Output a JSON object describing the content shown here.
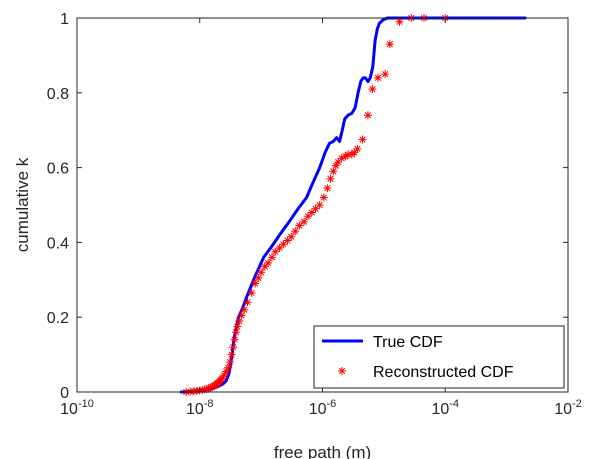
{
  "chart_data": {
    "type": "line",
    "xscale": "log",
    "xlabel": "free path (m)",
    "ylabel": "cumulative k",
    "xlim": [
      1e-10,
      0.01
    ],
    "ylim": [
      0,
      1
    ],
    "x_ticks": [
      {
        "value": 1e-10,
        "base": "10",
        "exp": "-10"
      },
      {
        "value": 1e-08,
        "base": "10",
        "exp": "-8"
      },
      {
        "value": 1e-06,
        "base": "10",
        "exp": "-6"
      },
      {
        "value": 0.0001,
        "base": "10",
        "exp": "-4"
      },
      {
        "value": 0.01,
        "base": "10",
        "exp": "-2"
      }
    ],
    "y_ticks": [
      {
        "value": 0,
        "label": "0"
      },
      {
        "value": 0.2,
        "label": "0.2"
      },
      {
        "value": 0.4,
        "label": "0.4"
      },
      {
        "value": 0.6,
        "label": "0.6"
      },
      {
        "value": 0.8,
        "label": "0.8"
      },
      {
        "value": 1,
        "label": "1"
      }
    ],
    "grid": false,
    "legend_position": "bottom-right",
    "series": [
      {
        "name": "True CDF",
        "style": "line",
        "color": "#0000ff",
        "x": [
          5e-09,
          8e-09,
          1.2e-08,
          1.6e-08,
          2e-08,
          2.4e-08,
          2.7e-08,
          3e-08,
          3.3e-08,
          3.6e-08,
          3.9e-08,
          4.3e-08,
          5e-08,
          6e-08,
          8e-08,
          1.1e-07,
          1.5e-07,
          2e-07,
          3e-07,
          4e-07,
          5.5e-07,
          7e-07,
          9e-07,
          1.1e-06,
          1.3e-06,
          1.5e-06,
          1.7e-06,
          1.9e-06,
          2.1e-06,
          2.3e-06,
          2.6e-06,
          3e-06,
          3.4e-06,
          3.8e-06,
          4.2e-06,
          4.6e-06,
          5e-06,
          5.5e-06,
          6e-06,
          6.6e-06,
          7.2e-06,
          7.8e-06,
          8.4e-06,
          9e-06,
          9.7e-06,
          1.04e-05,
          1.1e-05,
          1.16e-05,
          1.22e-05,
          1.3e-05,
          1.4e-05,
          1.6e-05,
          2e-05,
          3e-05,
          6e-05,
          0.0001,
          0.0003,
          0.001,
          0.002
        ],
        "y": [
          0.0,
          0.002,
          0.005,
          0.01,
          0.015,
          0.022,
          0.03,
          0.05,
          0.09,
          0.14,
          0.17,
          0.2,
          0.225,
          0.26,
          0.31,
          0.36,
          0.39,
          0.42,
          0.46,
          0.49,
          0.52,
          0.56,
          0.6,
          0.64,
          0.665,
          0.67,
          0.68,
          0.67,
          0.7,
          0.73,
          0.74,
          0.745,
          0.76,
          0.8,
          0.83,
          0.84,
          0.84,
          0.83,
          0.84,
          0.87,
          0.94,
          0.97,
          0.985,
          0.99,
          0.995,
          0.997,
          0.999,
          1,
          1,
          1,
          1,
          1,
          1,
          1,
          1,
          1,
          1,
          1,
          1
        ]
      },
      {
        "name": "Reconstructed CDF",
        "style": "marker",
        "marker": "asterisk",
        "color": "#ff0000",
        "x": [
          6e-09,
          7e-09,
          8e-09,
          9e-09,
          1e-08,
          1.1e-08,
          1.2e-08,
          1.3e-08,
          1.4e-08,
          1.5e-08,
          1.6e-08,
          1.7e-08,
          1.8e-08,
          1.9e-08,
          2e-08,
          2.1e-08,
          2.2e-08,
          2.3e-08,
          2.5e-08,
          2.7e-08,
          2.9e-08,
          3.1e-08,
          3.3e-08,
          3.5e-08,
          3.7e-08,
          3.9e-08,
          4.1e-08,
          4.4e-08,
          4.8e-08,
          5.3e-08,
          6e-08,
          7e-08,
          8e-08,
          9e-08,
          1e-07,
          1.15e-07,
          1.3e-07,
          1.5e-07,
          1.7e-07,
          2e-07,
          2.3e-07,
          2.7e-07,
          3.1e-07,
          3.6e-07,
          4.2e-07,
          5e-07,
          5.8e-07,
          6.7e-07,
          7.7e-07,
          9e-07,
          1.05e-06,
          1.2e-06,
          1.35e-06,
          1.5e-06,
          1.65e-06,
          1.8e-06,
          2.05e-06,
          2.35e-06,
          2.6e-06,
          3e-06,
          3.3e-06,
          3.7e-06,
          4.5e-06,
          5.5e-06,
          6.5e-06,
          8e-06,
          1.05e-05,
          1.25e-05,
          1.8e-05,
          2.8e-05,
          4.5e-05,
          0.0001
        ],
        "y": [
          0.0,
          0.001,
          0.002,
          0.003,
          0.004,
          0.005,
          0.007,
          0.008,
          0.01,
          0.012,
          0.014,
          0.016,
          0.019,
          0.022,
          0.025,
          0.028,
          0.032,
          0.036,
          0.045,
          0.055,
          0.065,
          0.08,
          0.1,
          0.12,
          0.14,
          0.16,
          0.175,
          0.19,
          0.205,
          0.22,
          0.24,
          0.265,
          0.29,
          0.305,
          0.32,
          0.335,
          0.345,
          0.36,
          0.375,
          0.385,
          0.395,
          0.405,
          0.415,
          0.43,
          0.445,
          0.455,
          0.47,
          0.48,
          0.49,
          0.5,
          0.52,
          0.545,
          0.57,
          0.59,
          0.605,
          0.615,
          0.625,
          0.63,
          0.635,
          0.635,
          0.64,
          0.65,
          0.675,
          0.74,
          0.81,
          0.84,
          0.85,
          0.93,
          0.99,
          1.0,
          1.0,
          1.0
        ]
      }
    ]
  }
}
